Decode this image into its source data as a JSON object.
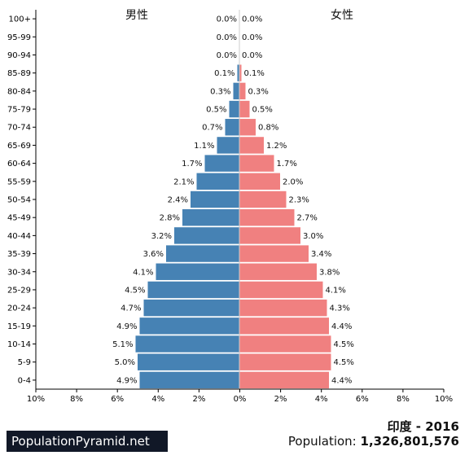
{
  "chart_data": {
    "type": "bar",
    "subtype": "population-pyramid",
    "title": "印度 - 2016",
    "categories": [
      "0-4",
      "5-9",
      "10-14",
      "15-19",
      "20-24",
      "25-29",
      "30-34",
      "35-39",
      "40-44",
      "45-49",
      "50-54",
      "55-59",
      "60-64",
      "65-69",
      "70-74",
      "75-79",
      "80-84",
      "85-89",
      "90-94",
      "95-99",
      "100+"
    ],
    "series": [
      {
        "name": "男性",
        "color": "#4682b4",
        "values": [
          4.9,
          5.0,
          5.1,
          4.9,
          4.7,
          4.5,
          4.1,
          3.6,
          3.2,
          2.8,
          2.4,
          2.1,
          1.7,
          1.1,
          0.7,
          0.5,
          0.3,
          0.1,
          0.0,
          0.0,
          0.0
        ],
        "labels": [
          "4.9%",
          "5.0%",
          "5.1%",
          "4.9%",
          "4.7%",
          "4.5%",
          "4.1%",
          "3.6%",
          "3.2%",
          "2.8%",
          "2.4%",
          "2.1%",
          "1.7%",
          "1.1%",
          "0.7%",
          "0.5%",
          "0.3%",
          "0.1%",
          "0.0%",
          "0.0%",
          "0.0%"
        ]
      },
      {
        "name": "女性",
        "color": "#f08080",
        "values": [
          4.4,
          4.5,
          4.5,
          4.4,
          4.3,
          4.1,
          3.8,
          3.4,
          3.0,
          2.7,
          2.3,
          2.0,
          1.7,
          1.2,
          0.8,
          0.5,
          0.3,
          0.1,
          0.0,
          0.0,
          0.0
        ],
        "labels": [
          "4.4%",
          "4.5%",
          "4.5%",
          "4.4%",
          "4.3%",
          "4.1%",
          "3.8%",
          "3.4%",
          "3.0%",
          "2.7%",
          "2.3%",
          "2.0%",
          "1.7%",
          "1.2%",
          "0.8%",
          "0.5%",
          "0.3%",
          "0.1%",
          "0.0%",
          "0.0%",
          "0.0%"
        ]
      }
    ],
    "xlim": [
      -10,
      10
    ],
    "x_ticks": [
      "10%",
      "8%",
      "6%",
      "4%",
      "2%",
      "0%",
      "2%",
      "4%",
      "6%",
      "8%",
      "10%"
    ],
    "grid": false,
    "legend": "none"
  },
  "footer": {
    "brand": "PopulationPyramid.net",
    "title": "印度 - 2016",
    "population_label": "Population:",
    "population_value": "1,326,801,576"
  }
}
